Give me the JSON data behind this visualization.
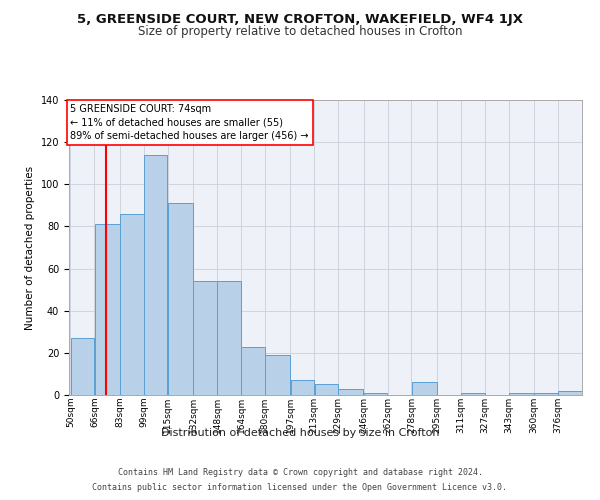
{
  "title1": "5, GREENSIDE COURT, NEW CROFTON, WAKEFIELD, WF4 1JX",
  "title2": "Size of property relative to detached houses in Crofton",
  "xlabel": "Distribution of detached houses by size in Crofton",
  "ylabel": "Number of detached properties",
  "footer1": "Contains HM Land Registry data © Crown copyright and database right 2024.",
  "footer2": "Contains public sector information licensed under the Open Government Licence v3.0.",
  "bins": [
    50,
    66,
    83,
    99,
    115,
    132,
    148,
    164,
    180,
    197,
    213,
    229,
    246,
    262,
    278,
    295,
    311,
    327,
    343,
    360,
    376
  ],
  "bin_labels": [
    "50sqm",
    "66sqm",
    "83sqm",
    "99sqm",
    "115sqm",
    "132sqm",
    "148sqm",
    "164sqm",
    "180sqm",
    "197sqm",
    "213sqm",
    "229sqm",
    "246sqm",
    "262sqm",
    "278sqm",
    "295sqm",
    "311sqm",
    "327sqm",
    "343sqm",
    "360sqm",
    "376sqm"
  ],
  "values": [
    27,
    81,
    86,
    114,
    91,
    54,
    54,
    23,
    19,
    7,
    5,
    3,
    1,
    0,
    6,
    0,
    1,
    0,
    1,
    1,
    2
  ],
  "bar_color": "#b8d0e8",
  "bar_edge_color": "#5a9fd4",
  "red_line_x": 74,
  "annotation_text": "5 GREENSIDE COURT: 74sqm\n← 11% of detached houses are smaller (55)\n89% of semi-detached houses are larger (456) →",
  "ylim": [
    0,
    140
  ],
  "yticks": [
    0,
    20,
    40,
    60,
    80,
    100,
    120,
    140
  ],
  "background_color": "#eef2f8",
  "grid_color": "#c8d0dc",
  "title1_fontsize": 9.5,
  "title2_fontsize": 8.5,
  "xlabel_fontsize": 8,
  "ylabel_fontsize": 7.5,
  "annot_fontsize": 7,
  "tick_fontsize": 6.5
}
